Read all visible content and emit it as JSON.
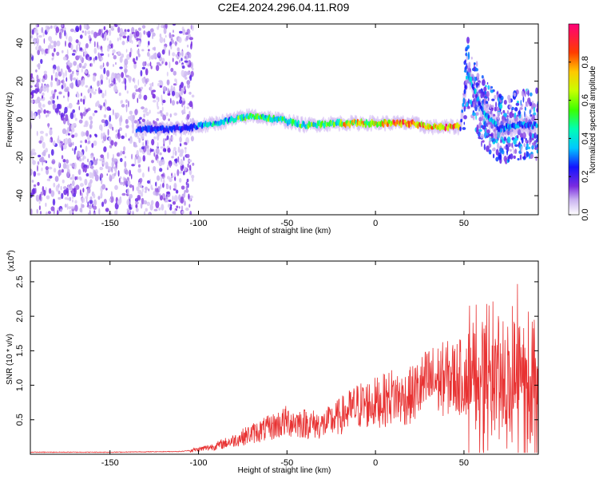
{
  "title": "C2E4.2024.296.04.11.R09",
  "chart_data": [
    {
      "type": "heatmap",
      "xlabel": "Height of straight line (km)",
      "ylabel": "Frequency (Hz)",
      "xlim": [
        -195,
        92
      ],
      "ylim": [
        -50,
        50
      ],
      "xticks": [
        -150,
        -100,
        -50,
        0,
        50
      ],
      "yticks": [
        -40,
        -20,
        0,
        20,
        40
      ],
      "colorbar": {
        "label": "Normalized spectral amplitude",
        "range": [
          0,
          1
        ],
        "ticks": [
          0.0,
          0.2,
          0.4,
          0.6,
          0.8
        ]
      },
      "ridge": [
        {
          "x": -130,
          "y": -5
        },
        {
          "x": -110,
          "y": -5
        },
        {
          "x": -95,
          "y": -3
        },
        {
          "x": -80,
          "y": 0
        },
        {
          "x": -70,
          "y": 2
        },
        {
          "x": -55,
          "y": 0
        },
        {
          "x": -40,
          "y": -3
        },
        {
          "x": -20,
          "y": -2
        },
        {
          "x": 0,
          "y": -2
        },
        {
          "x": 20,
          "y": -2
        },
        {
          "x": 30,
          "y": -4
        },
        {
          "x": 48,
          "y": -4
        },
        {
          "x": 52,
          "y": 25
        },
        {
          "x": 60,
          "y": 5
        },
        {
          "x": 70,
          "y": -5
        },
        {
          "x": 80,
          "y": -3
        },
        {
          "x": 90,
          "y": -3
        }
      ]
    },
    {
      "type": "line",
      "xlabel": "Height of straight line (km)",
      "ylabel": "SNR (10 * v/v)",
      "yunit": "(x10",
      "yunit_exp": "4",
      "xlim": [
        -195,
        92
      ],
      "ylim": [
        0,
        2.8
      ],
      "xticks": [
        -150,
        -100,
        -50,
        0,
        50
      ],
      "yticks": [
        0.5,
        1.0,
        1.5,
        2.0,
        2.5
      ],
      "color": "#e83232",
      "series": [
        {
          "x": [
            -195,
            -150,
            -110,
            -100,
            -90,
            -80,
            -70,
            -60,
            -50,
            -40,
            -30,
            -20,
            -10,
            0,
            5,
            10,
            15,
            20,
            30,
            40,
            50,
            53,
            55,
            60,
            65,
            70,
            75,
            80,
            85,
            90,
            92
          ],
          "y": [
            0.03,
            0.03,
            0.04,
            0.07,
            0.12,
            0.2,
            0.3,
            0.38,
            0.48,
            0.45,
            0.42,
            0.55,
            0.7,
            0.75,
            0.78,
            0.85,
            0.8,
            0.85,
            1.05,
            1.1,
            1.12,
            1.05,
            1.1,
            1.15,
            1.1,
            1.2,
            1.0,
            1.1,
            1.0,
            1.05,
            1.0
          ]
        }
      ]
    }
  ]
}
